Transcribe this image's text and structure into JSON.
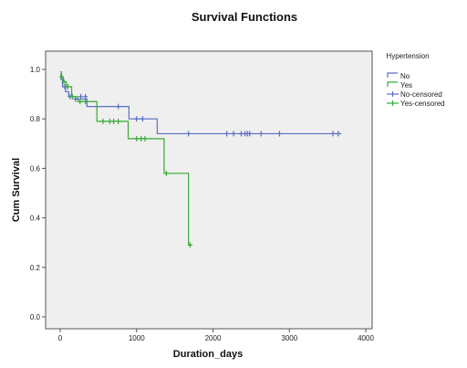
{
  "chart_data": {
    "type": "line",
    "title": "Survival Functions",
    "xlabel": "Duration_days",
    "ylabel": "Cum Survival",
    "xlim": [
      0,
      4000
    ],
    "ylim": [
      0,
      1.0
    ],
    "xticks": [
      0,
      1000,
      2000,
      3000,
      4000
    ],
    "yticks": [
      0.0,
      0.2,
      0.4,
      0.6,
      0.8,
      1.0
    ],
    "xtick_labels": [
      "0",
      "1000",
      "2000",
      "3000",
      "4000"
    ],
    "ytick_labels": [
      "0.0",
      "0.2",
      "0.4",
      "0.6",
      "0.8",
      "1.0"
    ],
    "grid": false,
    "plot_background": "#efefef",
    "legend": {
      "title": "Hypertension",
      "placement": "right",
      "entries": [
        "No",
        "Yes",
        "No-censored",
        "Yes-censored"
      ]
    },
    "series": [
      {
        "name": "No",
        "kind": "step",
        "color": "#5a6fc6",
        "points": [
          [
            0,
            0.98
          ],
          [
            10,
            0.96
          ],
          [
            30,
            0.93
          ],
          [
            70,
            0.91
          ],
          [
            110,
            0.89
          ],
          [
            200,
            0.88
          ],
          [
            350,
            0.85
          ],
          [
            900,
            0.8
          ],
          [
            1270,
            0.74
          ],
          [
            3680,
            0.74
          ]
        ]
      },
      {
        "name": "Yes",
        "kind": "step",
        "color": "#36ab36",
        "points": [
          [
            0,
            0.99
          ],
          [
            15,
            0.97
          ],
          [
            40,
            0.95
          ],
          [
            80,
            0.93
          ],
          [
            150,
            0.89
          ],
          [
            230,
            0.87
          ],
          [
            480,
            0.79
          ],
          [
            890,
            0.72
          ],
          [
            1360,
            0.58
          ],
          [
            1680,
            0.29
          ],
          [
            1730,
            0.29
          ]
        ]
      },
      {
        "name": "No-censored",
        "kind": "censor",
        "color": "#5a6fc6",
        "points": [
          [
            60,
            0.93
          ],
          [
            130,
            0.89
          ],
          [
            200,
            0.88
          ],
          [
            270,
            0.89
          ],
          [
            330,
            0.89
          ],
          [
            760,
            0.85
          ],
          [
            1000,
            0.8
          ],
          [
            1080,
            0.8
          ],
          [
            1680,
            0.74
          ],
          [
            2180,
            0.74
          ],
          [
            2270,
            0.74
          ],
          [
            2370,
            0.74
          ],
          [
            2420,
            0.74
          ],
          [
            2450,
            0.74
          ],
          [
            2480,
            0.74
          ],
          [
            2630,
            0.74
          ],
          [
            2870,
            0.74
          ],
          [
            3570,
            0.74
          ],
          [
            3640,
            0.74
          ]
        ]
      },
      {
        "name": "Yes-censored",
        "kind": "censor",
        "color": "#36ab36",
        "points": [
          [
            20,
            0.97
          ],
          [
            50,
            0.95
          ],
          [
            100,
            0.93
          ],
          [
            160,
            0.89
          ],
          [
            260,
            0.87
          ],
          [
            330,
            0.87
          ],
          [
            560,
            0.79
          ],
          [
            650,
            0.79
          ],
          [
            700,
            0.79
          ],
          [
            760,
            0.79
          ],
          [
            1000,
            0.72
          ],
          [
            1060,
            0.72
          ],
          [
            1110,
            0.72
          ],
          [
            1390,
            0.58
          ],
          [
            1700,
            0.29
          ]
        ]
      }
    ]
  }
}
